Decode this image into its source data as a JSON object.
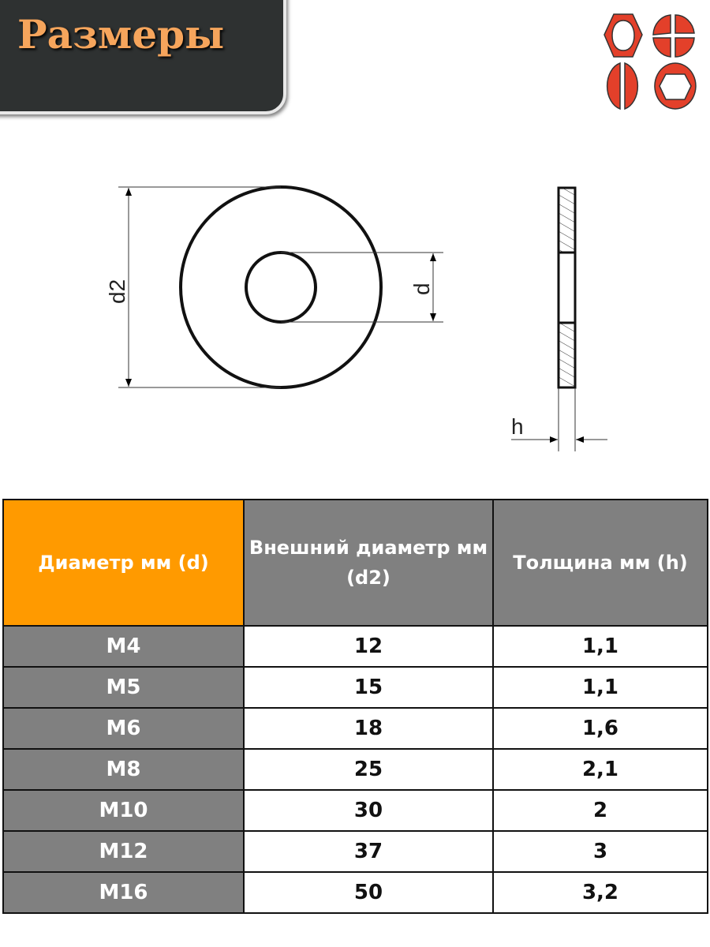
{
  "banner": {
    "title": "Размеры"
  },
  "logo": {
    "icon": "fastener-heads-icon",
    "color": "#e3402a"
  },
  "diagram": {
    "labels": {
      "outer": "d2",
      "inner": "d",
      "thickness": "h"
    }
  },
  "table": {
    "headers": [
      "Диаметр мм (d)",
      "Внешний диаметр мм (d2)",
      "Толщина мм (h)"
    ],
    "header_colors": {
      "first": "#ff9a00",
      "other": "#808080"
    },
    "rows": [
      {
        "size": "M4",
        "d2": "12",
        "h": "1,1"
      },
      {
        "size": "M5",
        "d2": "15",
        "h": "1,1"
      },
      {
        "size": "M6",
        "d2": "18",
        "h": "1,6"
      },
      {
        "size": "M8",
        "d2": "25",
        "h": "2,1"
      },
      {
        "size": "M10",
        "d2": "30",
        "h": "2"
      },
      {
        "size": "M12",
        "d2": "37",
        "h": "3"
      },
      {
        "size": "M16",
        "d2": "50",
        "h": "3,2"
      }
    ]
  }
}
